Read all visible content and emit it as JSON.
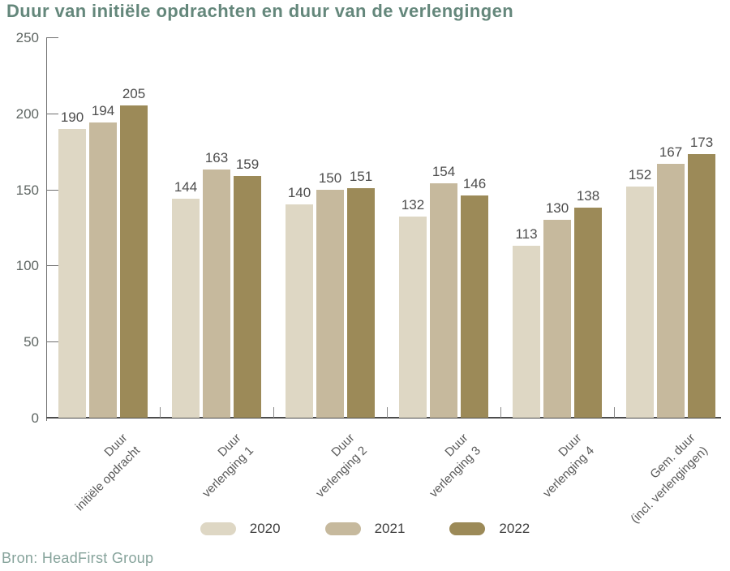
{
  "title": "Duur van initiële opdrachten en duur van de verlengingen",
  "source": "Bron: HeadFirst Group",
  "colors": {
    "title": "#64877b",
    "source": "#86a39b",
    "series_2020": "#ded7c4",
    "series_2021": "#c6b99d",
    "series_2022": "#9c8a58"
  },
  "chart_data": {
    "type": "bar",
    "title": "Duur van initiële opdrachten en duur van de verlengingen",
    "categories": [
      "Duur\ninitiële opdracht",
      "Duur\nverlenging 1",
      "Duur\nverlenging 2",
      "Duur\nverlenging 3",
      "Duur\nverlenging 4",
      "Gem. duur\n(incl. verlengingen)"
    ],
    "series": [
      {
        "name": "2020",
        "color": "#ded7c4",
        "values": [
          190,
          144,
          140,
          132,
          113,
          152
        ]
      },
      {
        "name": "2021",
        "color": "#c6b99d",
        "values": [
          194,
          163,
          150,
          154,
          130,
          167
        ]
      },
      {
        "name": "2022",
        "color": "#9c8a58",
        "values": [
          205,
          159,
          151,
          146,
          138,
          173
        ]
      }
    ],
    "xlabel": "",
    "ylabel": "",
    "ylim": [
      0,
      250
    ],
    "yticks": [
      0,
      50,
      100,
      150,
      200,
      250
    ],
    "grid": false,
    "value_labels": true,
    "legend_position": "bottom"
  }
}
